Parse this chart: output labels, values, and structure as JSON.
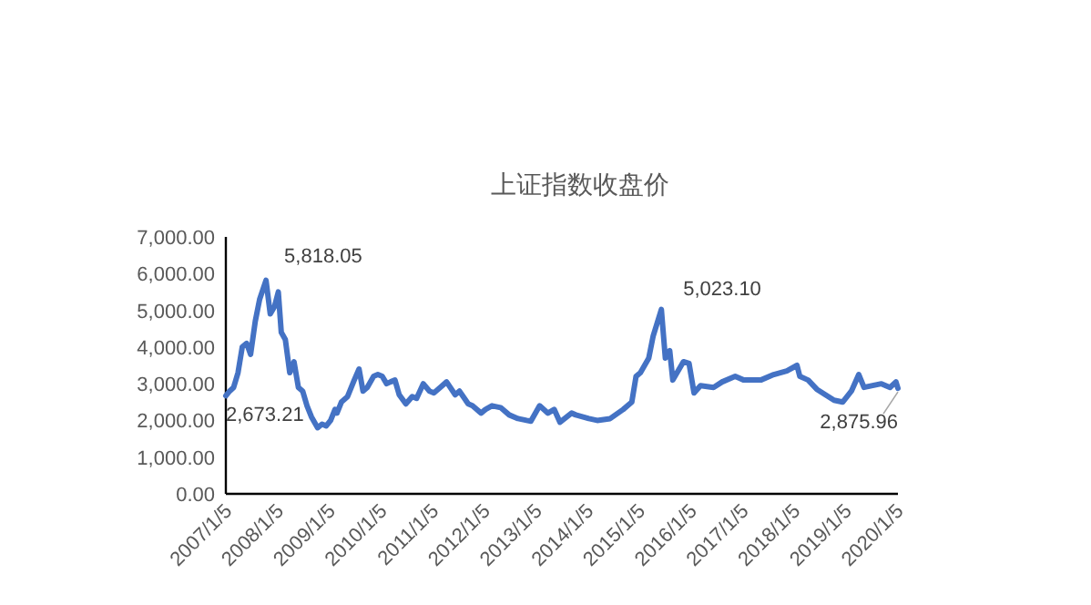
{
  "chart_data": {
    "type": "line",
    "title": "上证指数收盘价",
    "x": [
      "2007-01-05",
      "2007-02-01",
      "2007-03-01",
      "2007-04-01",
      "2007-05-01",
      "2007-06-01",
      "2007-06-29",
      "2007-08-01",
      "2007-09-01",
      "2007-10-16",
      "2007-11-15",
      "2007-12-15",
      "2008-01-11",
      "2008-02-01",
      "2008-03-01",
      "2008-04-01",
      "2008-05-01",
      "2008-06-01",
      "2008-07-01",
      "2008-08-01",
      "2008-09-01",
      "2008-10-15",
      "2008-11-15",
      "2008-12-15",
      "2009-01-15",
      "2009-02-15",
      "2009-03-01",
      "2009-04-01",
      "2009-05-15",
      "2009-07-01",
      "2009-08-04",
      "2009-09-01",
      "2009-10-01",
      "2009-11-15",
      "2009-12-15",
      "2010-01-15",
      "2010-02-15",
      "2010-03-15",
      "2010-04-15",
      "2010-05-15",
      "2010-07-01",
      "2010-08-15",
      "2010-09-15",
      "2010-11-01",
      "2010-12-15",
      "2011-01-15",
      "2011-03-01",
      "2011-04-15",
      "2011-06-15",
      "2011-07-15",
      "2011-09-15",
      "2011-10-15",
      "2011-12-15",
      "2012-01-15",
      "2012-03-01",
      "2012-05-01",
      "2012-07-01",
      "2012-09-01",
      "2012-11-01",
      "2012-12-01",
      "2013-02-01",
      "2013-04-01",
      "2013-05-15",
      "2013-06-25",
      "2013-09-15",
      "2013-10-15",
      "2014-01-15",
      "2014-03-15",
      "2014-06-15",
      "2014-09-15",
      "2014-11-15",
      "2014-12-15",
      "2015-01-15",
      "2015-03-15",
      "2015-04-15",
      "2015-06-12",
      "2015-07-10",
      "2015-08-10",
      "2015-09-01",
      "2015-11-15",
      "2015-12-25",
      "2016-01-29",
      "2016-03-15",
      "2016-06-15",
      "2016-08-15",
      "2016-11-15",
      "2017-01-15",
      "2017-05-15",
      "2017-08-15",
      "2017-11-15",
      "2018-01-26",
      "2018-02-15",
      "2018-04-15",
      "2018-06-15",
      "2018-08-15",
      "2018-10-15",
      "2018-12-15",
      "2019-02-15",
      "2019-04-08",
      "2019-05-15",
      "2019-07-15",
      "2019-09-15",
      "2019-11-15",
      "2019-12-27",
      "2020-01-10"
    ],
    "series": [
      {
        "color": "#4472c4",
        "values": [
          2673.21,
          2800,
          2900,
          3300,
          4000,
          4100,
          3800,
          4700,
          5300,
          5818.05,
          4900,
          5100,
          5500,
          4400,
          4200,
          3300,
          3600,
          2900,
          2800,
          2400,
          2100,
          1800,
          1900,
          1850,
          2000,
          2300,
          2200,
          2500,
          2650,
          3100,
          3400,
          2800,
          2900,
          3200,
          3250,
          3200,
          3000,
          3050,
          3100,
          2700,
          2450,
          2650,
          2600,
          3000,
          2800,
          2750,
          2900,
          3050,
          2700,
          2800,
          2450,
          2400,
          2200,
          2300,
          2400,
          2350,
          2150,
          2050,
          2000,
          1980,
          2400,
          2200,
          2300,
          1950,
          2200,
          2150,
          2050,
          2000,
          2050,
          2300,
          2500,
          3200,
          3300,
          3700,
          4300,
          5023.1,
          3700,
          3900,
          3100,
          3600,
          3550,
          2750,
          2950,
          2900,
          3050,
          3200,
          3100,
          3100,
          3250,
          3350,
          3500,
          3200,
          3100,
          2850,
          2700,
          2550,
          2500,
          2800,
          3250,
          2900,
          2950,
          3000,
          2900,
          3050,
          2875.96
        ]
      }
    ],
    "xlim": [
      "2007-01-05",
      "2020-01-10"
    ],
    "xticks": [
      {
        "value": "2007-01-05",
        "label": "2007/1/5"
      },
      {
        "value": "2008-01-05",
        "label": "2008/1/5"
      },
      {
        "value": "2009-01-05",
        "label": "2009/1/5"
      },
      {
        "value": "2010-01-05",
        "label": "2010/1/5"
      },
      {
        "value": "2011-01-05",
        "label": "2011/1/5"
      },
      {
        "value": "2012-01-05",
        "label": "2012/1/5"
      },
      {
        "value": "2013-01-05",
        "label": "2013/1/5"
      },
      {
        "value": "2014-01-05",
        "label": "2014/1/5"
      },
      {
        "value": "2015-01-05",
        "label": "2015/1/5"
      },
      {
        "value": "2016-01-05",
        "label": "2016/1/5"
      },
      {
        "value": "2017-01-05",
        "label": "2017/1/5"
      },
      {
        "value": "2018-01-05",
        "label": "2018/1/5"
      },
      {
        "value": "2019-01-05",
        "label": "2019/1/5"
      },
      {
        "value": "2020-01-05",
        "label": "2020/1/5"
      }
    ],
    "ylim": [
      0,
      7000
    ],
    "yticks": [
      {
        "value": 0,
        "label": "0.00"
      },
      {
        "value": 1000,
        "label": "1,000.00"
      },
      {
        "value": 2000,
        "label": "2,000.00"
      },
      {
        "value": 3000,
        "label": "3,000.00"
      },
      {
        "value": 4000,
        "label": "4,000.00"
      },
      {
        "value": 5000,
        "label": "5,000.00"
      },
      {
        "value": 6000,
        "label": "6,000.00"
      },
      {
        "value": 7000,
        "label": "7,000.00"
      }
    ],
    "annotations": [
      {
        "text": "2,673.21",
        "x": "2007-01-05",
        "y": 2673.21
      },
      {
        "text": "5,818.05",
        "x": "2007-10-16",
        "y": 5818.05
      },
      {
        "text": "5,023.10",
        "x": "2015-06-12",
        "y": 5023.1
      },
      {
        "text": "2,875.96",
        "x": "2020-01-10",
        "y": 2875.96
      }
    ],
    "grid": false,
    "marker": "none",
    "line_style": "solid"
  }
}
